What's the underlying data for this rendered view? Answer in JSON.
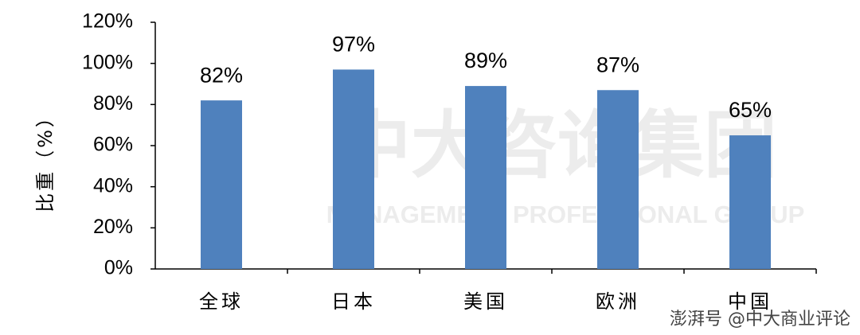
{
  "chart_data": {
    "type": "bar",
    "y_label": "比重（%）",
    "categories": [
      "全球",
      "日本",
      "美国",
      "欧洲",
      "中国"
    ],
    "values": [
      82,
      97,
      89,
      87,
      65
    ],
    "value_labels": [
      "82%",
      "97%",
      "89%",
      "87%",
      "65%"
    ],
    "color": "#4f81bd",
    "ylim": [
      0,
      120
    ],
    "yticks": [
      {
        "value": 0,
        "label": "0%"
      },
      {
        "value": 20,
        "label": "20%"
      },
      {
        "value": 40,
        "label": "40%"
      },
      {
        "value": 60,
        "label": "60%"
      },
      {
        "value": 80,
        "label": "80%"
      },
      {
        "value": 100,
        "label": "100%"
      },
      {
        "value": 120,
        "label": "120%"
      }
    ],
    "grid": false,
    "watermark": {
      "text": "中大咨询集团",
      "subtext": "MANAGEMENT PROFESSIONAL GROUP"
    },
    "source": "澎湃号 @中大商业评论"
  }
}
